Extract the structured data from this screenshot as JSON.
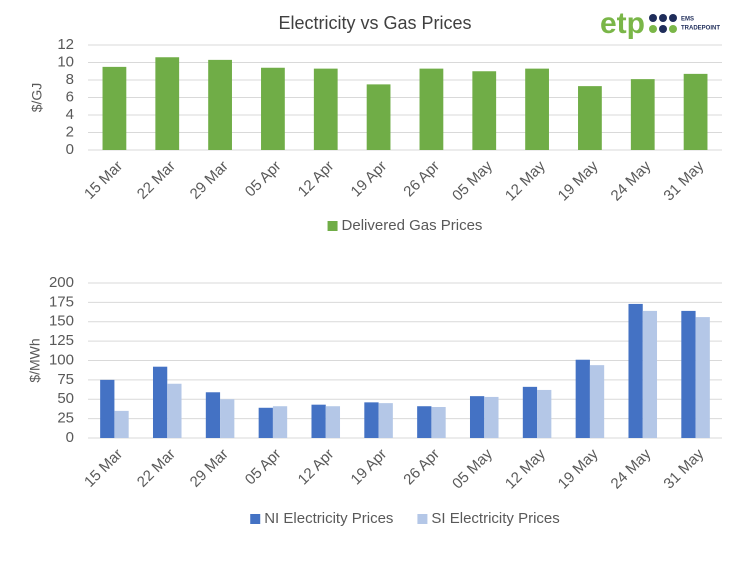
{
  "logo": {
    "mark": "etp",
    "line1": "EMS",
    "line2": "TRADEPOINT"
  },
  "chart_data": [
    {
      "type": "bar",
      "title": "Electricity vs Gas Prices",
      "y_label": "$/GJ",
      "categories": [
        "15 Mar",
        "22 Mar",
        "29 Mar",
        "05 Apr",
        "12 Apr",
        "19 Apr",
        "26 Apr",
        "05 May",
        "12 May",
        "19 May",
        "24 May",
        "31 May"
      ],
      "series": [
        {
          "name": "Delivered Gas Prices",
          "color": "#70ad47",
          "values": [
            9.5,
            10.6,
            10.3,
            9.4,
            9.3,
            7.5,
            9.3,
            9.0,
            9.3,
            7.3,
            8.1,
            8.7
          ]
        }
      ],
      "ylim": [
        0,
        12
      ],
      "yticks": [
        0,
        2,
        4,
        6,
        8,
        10,
        12
      ],
      "grid": true,
      "legend": "bottom"
    },
    {
      "type": "bar",
      "y_label": "$/MWh",
      "categories": [
        "15 Mar",
        "22 Mar",
        "29 Mar",
        "05 Apr",
        "12 Apr",
        "19 Apr",
        "26 Apr",
        "05 May",
        "12 May",
        "19 May",
        "24 May",
        "31 May"
      ],
      "series": [
        {
          "name": "NI Electricity Prices",
          "color": "#4472c4",
          "values": [
            75,
            92,
            59,
            39,
            43,
            46,
            41,
            54,
            66,
            101,
            173,
            164
          ]
        },
        {
          "name": "SI Electricity Prices",
          "color": "#b4c7e7",
          "values": [
            35,
            70,
            50,
            41,
            41,
            45,
            40,
            53,
            62,
            94,
            164,
            156
          ]
        }
      ],
      "ylim": [
        0,
        200
      ],
      "yticks": [
        0,
        25,
        50,
        75,
        100,
        125,
        150,
        175,
        200
      ],
      "grid": true,
      "legend": "bottom"
    }
  ]
}
